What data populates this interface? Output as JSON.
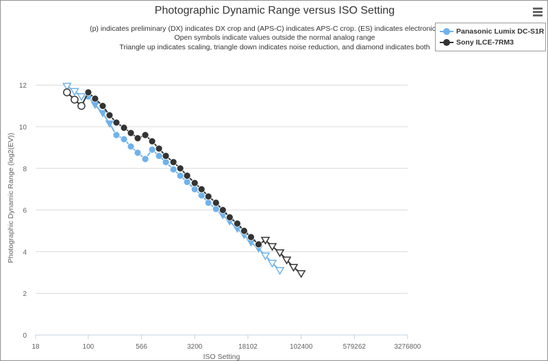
{
  "chart_data": {
    "type": "line",
    "title": "Photographic Dynamic Range versus ISO Setting",
    "subtitles": [
      "(p) indicates preliminary (DX) indicates DX crop and (APS-C) indicates APS-C crop. (ES) indicates electronic shutter",
      "Open symbols indicate values outside the normal analog range",
      "Triangle up indicates scaling, triangle down indicates noise reduction, and diamond indicates both"
    ],
    "xlabel": "ISO Setting",
    "ylabel": "Photographic Dynamic Range (log2(EV))",
    "xscale": "log",
    "x_ticks": [
      "18",
      "100",
      "566",
      "3200",
      "18102",
      "102400",
      "579262",
      "3276800"
    ],
    "y_ticks": [
      "0",
      "2",
      "4",
      "6",
      "8",
      "10",
      "12"
    ],
    "xlim": [
      18,
      3276800
    ],
    "ylim": [
      0,
      12.5
    ],
    "grid": "horizontal",
    "legend_position": "top-right",
    "series": [
      {
        "name": "Panasonic Lumix DC-S1R",
        "color": "#6fb2eb",
        "points": [
          {
            "x": 50,
            "y": 11.95,
            "marker": "triangle-down-open"
          },
          {
            "x": 64,
            "y": 11.7,
            "marker": "triangle-down-open"
          },
          {
            "x": 80,
            "y": 11.45,
            "marker": "triangle-down-open"
          },
          {
            "x": 100,
            "y": 11.45,
            "marker": "circle"
          },
          {
            "x": 125,
            "y": 11.05,
            "marker": "triangle-down"
          },
          {
            "x": 160,
            "y": 10.65,
            "marker": "triangle-down"
          },
          {
            "x": 200,
            "y": 10.15,
            "marker": "triangle-down"
          },
          {
            "x": 250,
            "y": 9.6,
            "marker": "circle"
          },
          {
            "x": 320,
            "y": 9.4,
            "marker": "circle"
          },
          {
            "x": 400,
            "y": 9.05,
            "marker": "circle"
          },
          {
            "x": 500,
            "y": 8.75,
            "marker": "circle"
          },
          {
            "x": 640,
            "y": 8.45,
            "marker": "circle"
          },
          {
            "x": 800,
            "y": 8.9,
            "marker": "circle"
          },
          {
            "x": 1000,
            "y": 8.6,
            "marker": "circle"
          },
          {
            "x": 1250,
            "y": 8.3,
            "marker": "circle"
          },
          {
            "x": 1600,
            "y": 7.95,
            "marker": "circle"
          },
          {
            "x": 2000,
            "y": 7.65,
            "marker": "circle"
          },
          {
            "x": 2500,
            "y": 7.35,
            "marker": "circle"
          },
          {
            "x": 3200,
            "y": 7.0,
            "marker": "circle"
          },
          {
            "x": 4000,
            "y": 6.7,
            "marker": "circle"
          },
          {
            "x": 5000,
            "y": 6.35,
            "marker": "circle"
          },
          {
            "x": 6400,
            "y": 6.05,
            "marker": "circle"
          },
          {
            "x": 8000,
            "y": 5.75,
            "marker": "triangle-down"
          },
          {
            "x": 10000,
            "y": 5.45,
            "marker": "triangle-down"
          },
          {
            "x": 12800,
            "y": 5.1,
            "marker": "triangle-down"
          },
          {
            "x": 16000,
            "y": 4.8,
            "marker": "triangle-down"
          },
          {
            "x": 20000,
            "y": 4.45,
            "marker": "triangle-down"
          },
          {
            "x": 25600,
            "y": 4.15,
            "marker": "triangle-down"
          },
          {
            "x": 32000,
            "y": 3.8,
            "marker": "triangle-down-open"
          },
          {
            "x": 40000,
            "y": 3.45,
            "marker": "triangle-down-open"
          },
          {
            "x": 51200,
            "y": 3.1,
            "marker": "triangle-down-open"
          }
        ]
      },
      {
        "name": "Sony ILCE-7RM3",
        "color": "#333333",
        "points": [
          {
            "x": 50,
            "y": 11.65,
            "marker": "circle-open"
          },
          {
            "x": 64,
            "y": 11.3,
            "marker": "circle-open"
          },
          {
            "x": 80,
            "y": 11.0,
            "marker": "circle-open"
          },
          {
            "x": 100,
            "y": 11.65,
            "marker": "circle"
          },
          {
            "x": 125,
            "y": 11.35,
            "marker": "circle"
          },
          {
            "x": 160,
            "y": 11.0,
            "marker": "circle"
          },
          {
            "x": 200,
            "y": 10.55,
            "marker": "circle"
          },
          {
            "x": 250,
            "y": 10.2,
            "marker": "circle"
          },
          {
            "x": 320,
            "y": 9.95,
            "marker": "circle"
          },
          {
            "x": 400,
            "y": 9.7,
            "marker": "circle"
          },
          {
            "x": 500,
            "y": 9.45,
            "marker": "circle"
          },
          {
            "x": 640,
            "y": 9.6,
            "marker": "circle"
          },
          {
            "x": 800,
            "y": 9.3,
            "marker": "circle"
          },
          {
            "x": 1000,
            "y": 8.95,
            "marker": "circle"
          },
          {
            "x": 1250,
            "y": 8.6,
            "marker": "circle"
          },
          {
            "x": 1600,
            "y": 8.3,
            "marker": "circle"
          },
          {
            "x": 2000,
            "y": 8.0,
            "marker": "circle"
          },
          {
            "x": 2500,
            "y": 7.65,
            "marker": "circle"
          },
          {
            "x": 3200,
            "y": 7.3,
            "marker": "circle"
          },
          {
            "x": 4000,
            "y": 7.0,
            "marker": "circle"
          },
          {
            "x": 5000,
            "y": 6.65,
            "marker": "circle"
          },
          {
            "x": 6400,
            "y": 6.35,
            "marker": "circle"
          },
          {
            "x": 8000,
            "y": 6.0,
            "marker": "circle"
          },
          {
            "x": 10000,
            "y": 5.65,
            "marker": "circle"
          },
          {
            "x": 12800,
            "y": 5.35,
            "marker": "circle"
          },
          {
            "x": 16000,
            "y": 5.0,
            "marker": "circle"
          },
          {
            "x": 20000,
            "y": 4.7,
            "marker": "circle"
          },
          {
            "x": 25600,
            "y": 4.35,
            "marker": "circle"
          },
          {
            "x": 32000,
            "y": 4.55,
            "marker": "triangle-down-open"
          },
          {
            "x": 40000,
            "y": 4.25,
            "marker": "triangle-down-open"
          },
          {
            "x": 51200,
            "y": 3.95,
            "marker": "triangle-down-open"
          },
          {
            "x": 64000,
            "y": 3.6,
            "marker": "triangle-down-open"
          },
          {
            "x": 80000,
            "y": 3.25,
            "marker": "triangle-down-open"
          },
          {
            "x": 102400,
            "y": 2.95,
            "marker": "triangle-down-open"
          }
        ]
      }
    ]
  }
}
